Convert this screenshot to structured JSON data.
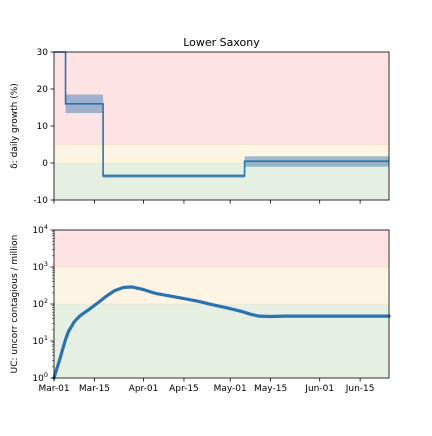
{
  "chart_data": [
    {
      "type": "line",
      "title": "Lower Saxony",
      "ylabel": "δ: daily growth (%)",
      "xlabel": "",
      "ylim": [
        -10,
        30
      ],
      "yticks": [
        -10,
        0,
        10,
        20,
        30
      ],
      "bands": [
        {
          "from": -10,
          "to": 0,
          "color": "#e5f0e2"
        },
        {
          "from": 0,
          "to": 5,
          "color": "#fdf4e3"
        },
        {
          "from": 5,
          "to": 30,
          "color": "#fde3e3"
        }
      ],
      "series": [
        {
          "color": "#2a72b0",
          "steps": [
            {
              "x0": "2020-03-01",
              "x1": "2020-03-05",
              "y": 30
            },
            {
              "x0": "2020-03-05",
              "x1": "2020-03-18",
              "y": 16,
              "lo": 13.5,
              "hi": 18.5
            },
            {
              "x0": "2020-03-18",
              "x1": "2020-05-06",
              "y": -3.5,
              "lo": -4,
              "hi": -3
            },
            {
              "x0": "2020-05-06",
              "x1": "2020-06-25",
              "y": 0.5,
              "lo": -1,
              "hi": 1.8
            }
          ]
        }
      ],
      "grid": false
    },
    {
      "type": "line",
      "title": "",
      "ylabel": "UC: uncorr contagious / million",
      "xlabel": "",
      "yscale": "log",
      "ylim": [
        1,
        10000
      ],
      "yticks": [
        {
          "value": 1,
          "base": "10",
          "exp": "0"
        },
        {
          "value": 10,
          "base": "10",
          "exp": "1"
        },
        {
          "value": 100,
          "base": "10",
          "exp": "2"
        },
        {
          "value": 1000,
          "base": "10",
          "exp": "3"
        },
        {
          "value": 10000,
          "base": "10",
          "exp": "4"
        }
      ],
      "bands": [
        {
          "from": 1,
          "to": 100,
          "color": "#e5f0e2"
        },
        {
          "from": 100,
          "to": 1000,
          "color": "#fdf4e3"
        },
        {
          "from": 1000,
          "to": 10000,
          "color": "#fde3e3"
        }
      ],
      "series": [
        {
          "color": "#2a72b0",
          "points": [
            [
              "2020-03-01",
              1
            ],
            [
              "2020-03-02",
              1.8
            ],
            [
              "2020-03-03",
              3.2
            ],
            [
              "2020-03-04",
              6
            ],
            [
              "2020-03-05",
              11
            ],
            [
              "2020-03-06",
              18
            ],
            [
              "2020-03-08",
              33
            ],
            [
              "2020-03-10",
              48
            ],
            [
              "2020-03-13",
              70
            ],
            [
              "2020-03-16",
              105
            ],
            [
              "2020-03-19",
              160
            ],
            [
              "2020-03-22",
              230
            ],
            [
              "2020-03-25",
              280
            ],
            [
              "2020-03-28",
              290
            ],
            [
              "2020-04-01",
              245
            ],
            [
              "2020-04-05",
              195
            ],
            [
              "2020-04-10",
              165
            ],
            [
              "2020-04-15",
              140
            ],
            [
              "2020-04-20",
              118
            ],
            [
              "2020-04-25",
              95
            ],
            [
              "2020-04-30",
              78
            ],
            [
              "2020-05-05",
              63
            ],
            [
              "2020-05-08",
              53
            ],
            [
              "2020-05-11",
              47
            ],
            [
              "2020-05-15",
              46
            ],
            [
              "2020-05-20",
              47
            ],
            [
              "2020-06-01",
              47
            ],
            [
              "2020-06-15",
              47
            ],
            [
              "2020-06-25",
              47
            ]
          ]
        }
      ],
      "grid": false
    }
  ],
  "x_axis": {
    "xlim": [
      "2020-03-01",
      "2020-06-25"
    ],
    "ticks": [
      {
        "date": "2020-03-01",
        "label": "Mar-01"
      },
      {
        "date": "2020-03-15",
        "label": "Mar-15"
      },
      {
        "date": "2020-04-01",
        "label": "Apr-01"
      },
      {
        "date": "2020-04-15",
        "label": "Apr-15"
      },
      {
        "date": "2020-05-01",
        "label": "May-01"
      },
      {
        "date": "2020-05-15",
        "label": "May-15"
      },
      {
        "date": "2020-06-01",
        "label": "Jun-01"
      },
      {
        "date": "2020-06-15",
        "label": "Jun-15"
      }
    ]
  }
}
